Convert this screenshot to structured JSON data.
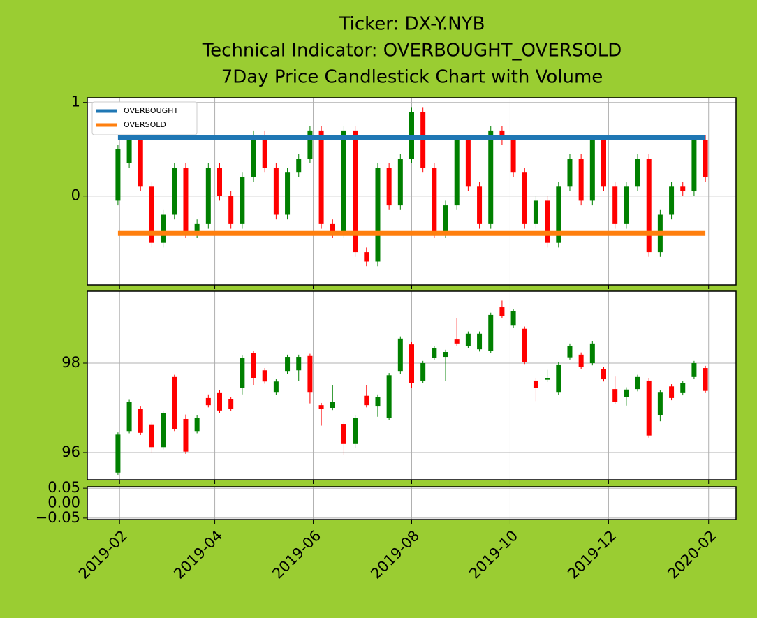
{
  "chart_data": [
    {
      "type": "candlestick",
      "title": [
        "Ticker: DX-Y.NYB",
        "Technical Indicator: OVERBOUGHT_OVERSOLD",
        "7Day Price Candlestick Chart with Volume"
      ],
      "x": [
        "2019-01-31",
        "2019-02-07",
        "2019-02-14",
        "2019-02-21",
        "2019-02-28",
        "2019-03-07",
        "2019-03-14",
        "2019-03-21",
        "2019-03-28",
        "2019-04-04",
        "2019-04-11",
        "2019-04-18",
        "2019-04-25",
        "2019-05-02",
        "2019-05-09",
        "2019-05-16",
        "2019-05-23",
        "2019-05-30",
        "2019-06-06",
        "2019-06-13",
        "2019-06-20",
        "2019-06-27",
        "2019-07-04",
        "2019-07-11",
        "2019-07-18",
        "2019-07-25",
        "2019-08-01",
        "2019-08-08",
        "2019-08-15",
        "2019-08-22",
        "2019-08-29",
        "2019-09-05",
        "2019-09-12",
        "2019-09-19",
        "2019-09-26",
        "2019-10-03",
        "2019-10-10",
        "2019-10-17",
        "2019-10-24",
        "2019-10-31",
        "2019-11-07",
        "2019-11-14",
        "2019-11-21",
        "2019-11-28",
        "2019-12-05",
        "2019-12-12",
        "2019-12-19",
        "2019-12-26",
        "2020-01-02",
        "2020-01-09",
        "2020-01-16",
        "2020-01-23",
        "2020-01-30"
      ],
      "open": [
        -0.05,
        0.35,
        0.6,
        0.1,
        -0.5,
        -0.2,
        0.3,
        -0.4,
        -0.3,
        0.3,
        0.0,
        -0.3,
        0.2,
        0.65,
        0.3,
        -0.2,
        0.25,
        0.4,
        0.7,
        -0.3,
        -0.4,
        0.7,
        -0.6,
        -0.7,
        0.3,
        -0.1,
        0.4,
        0.9,
        0.3,
        -0.4,
        -0.1,
        0.6,
        0.1,
        -0.3,
        0.7,
        0.6,
        0.25,
        -0.3,
        -0.05,
        -0.5,
        0.1,
        0.4,
        -0.05,
        0.6,
        0.1,
        -0.3,
        0.1,
        0.4,
        -0.6,
        -0.2,
        0.1,
        0.05,
        0.6
      ],
      "high": [
        0.55,
        0.65,
        0.65,
        0.15,
        -0.15,
        0.35,
        0.35,
        -0.25,
        0.35,
        0.35,
        0.05,
        0.25,
        0.7,
        0.7,
        0.35,
        0.3,
        0.45,
        0.75,
        0.75,
        -0.25,
        0.75,
        0.75,
        -0.55,
        0.35,
        0.35,
        0.45,
        0.95,
        0.95,
        0.35,
        -0.05,
        0.65,
        0.65,
        0.15,
        0.75,
        0.75,
        0.65,
        0.3,
        0.0,
        0.0,
        0.15,
        0.45,
        0.45,
        0.65,
        0.65,
        0.15,
        0.15,
        0.45,
        0.45,
        -0.15,
        0.15,
        0.15,
        0.65,
        0.65
      ],
      "low": [
        -0.1,
        0.3,
        0.05,
        -0.55,
        -0.55,
        -0.25,
        -0.45,
        -0.45,
        -0.35,
        -0.05,
        -0.35,
        -0.35,
        0.15,
        0.25,
        -0.25,
        -0.25,
        0.2,
        0.35,
        -0.35,
        -0.45,
        -0.45,
        -0.65,
        -0.75,
        -0.75,
        -0.15,
        -0.15,
        0.35,
        0.25,
        -0.45,
        -0.45,
        -0.15,
        0.05,
        -0.35,
        -0.35,
        0.55,
        0.2,
        -0.35,
        -0.35,
        -0.55,
        -0.55,
        0.05,
        -0.1,
        -0.1,
        0.05,
        -0.35,
        -0.35,
        0.05,
        -0.65,
        -0.65,
        -0.25,
        0.0,
        0.0,
        0.15
      ],
      "close": [
        0.5,
        0.6,
        0.1,
        -0.5,
        -0.2,
        0.3,
        -0.4,
        -0.3,
        0.3,
        0.0,
        -0.3,
        0.2,
        0.65,
        0.3,
        -0.2,
        0.25,
        0.4,
        0.7,
        -0.3,
        -0.4,
        0.7,
        -0.6,
        -0.7,
        0.3,
        -0.1,
        0.4,
        0.9,
        0.3,
        -0.4,
        -0.1,
        0.6,
        0.1,
        -0.3,
        0.7,
        0.6,
        0.25,
        -0.3,
        -0.05,
        -0.5,
        0.1,
        0.4,
        -0.05,
        0.6,
        0.1,
        -0.3,
        0.1,
        0.4,
        -0.6,
        -0.2,
        0.1,
        0.05,
        0.6,
        0.2
      ],
      "up_color": "green",
      "down_color": "red",
      "lines": [
        {
          "name": "OVERBOUGHT",
          "color": "#1f77b4",
          "value": 0.627
        },
        {
          "name": "OVERSOLD",
          "color": "#ff7f0e",
          "value": -0.4
        }
      ],
      "legend": "upper left",
      "ylim": [
        -0.95,
        1.05
      ],
      "yticks": [
        0,
        1
      ],
      "grid": true
    },
    {
      "type": "candlestick",
      "x": [
        "2019-01-31",
        "2019-02-07",
        "2019-02-14",
        "2019-02-21",
        "2019-02-28",
        "2019-03-07",
        "2019-03-14",
        "2019-03-21",
        "2019-03-28",
        "2019-04-04",
        "2019-04-11",
        "2019-04-18",
        "2019-04-25",
        "2019-05-02",
        "2019-05-09",
        "2019-05-16",
        "2019-05-23",
        "2019-05-30",
        "2019-06-06",
        "2019-06-13",
        "2019-06-20",
        "2019-06-27",
        "2019-07-04",
        "2019-07-11",
        "2019-07-18",
        "2019-07-25",
        "2019-08-01",
        "2019-08-08",
        "2019-08-15",
        "2019-08-22",
        "2019-08-29",
        "2019-09-05",
        "2019-09-12",
        "2019-09-19",
        "2019-09-26",
        "2019-10-03",
        "2019-10-10",
        "2019-10-17",
        "2019-10-24",
        "2019-10-31",
        "2019-11-07",
        "2019-11-14",
        "2019-11-21",
        "2019-11-28",
        "2019-12-05",
        "2019-12-12",
        "2019-12-19",
        "2019-12-26",
        "2020-01-02",
        "2020-01-09",
        "2020-01-16",
        "2020-01-23",
        "2020-01-30"
      ],
      "open": [
        95.55,
        96.48,
        96.98,
        96.63,
        96.12,
        97.69,
        96.75,
        96.48,
        97.22,
        97.33,
        97.19,
        97.45,
        98.22,
        97.84,
        97.34,
        97.81,
        97.84,
        98.16,
        97.06,
        97.0,
        96.64,
        96.19,
        97.27,
        97.03,
        96.77,
        97.81,
        98.42,
        97.61,
        98.12,
        98.14,
        98.53,
        98.39,
        98.31,
        98.27,
        99.25,
        98.84,
        98.77,
        97.61,
        97.63,
        97.34,
        98.13,
        98.19,
        98.0,
        97.86,
        97.42,
        97.25,
        97.42,
        97.61,
        96.83,
        97.48,
        97.33,
        97.69,
        97.89
      ],
      "high": [
        96.45,
        97.18,
        97.03,
        96.68,
        96.93,
        97.74,
        96.85,
        96.83,
        97.3,
        97.4,
        97.24,
        98.17,
        98.27,
        97.89,
        97.64,
        98.19,
        98.19,
        98.21,
        97.11,
        97.5,
        96.69,
        96.83,
        97.5,
        97.3,
        97.78,
        98.6,
        98.47,
        98.05,
        98.39,
        98.3,
        99.0,
        98.71,
        98.71,
        99.13,
        99.4,
        99.21,
        98.82,
        97.66,
        97.85,
        98.02,
        98.44,
        98.24,
        98.49,
        97.91,
        97.7,
        97.46,
        97.74,
        97.66,
        97.39,
        97.53,
        97.6,
        98.05,
        97.94
      ],
      "low": [
        95.5,
        96.43,
        96.39,
        96.0,
        96.07,
        96.48,
        95.97,
        96.43,
        97.01,
        96.89,
        96.93,
        97.3,
        97.5,
        97.54,
        97.29,
        97.76,
        97.6,
        97.1,
        96.6,
        96.95,
        95.95,
        96.1,
        97.01,
        96.8,
        96.72,
        97.76,
        97.45,
        97.56,
        98.07,
        97.6,
        98.39,
        98.34,
        98.26,
        98.22,
        99.0,
        98.79,
        97.98,
        97.15,
        97.58,
        97.29,
        98.08,
        97.87,
        97.95,
        97.59,
        97.09,
        97.05,
        97.37,
        96.33,
        96.7,
        97.17,
        97.28,
        97.64,
        97.33
      ],
      "close": [
        96.4,
        97.13,
        96.44,
        96.12,
        96.88,
        96.53,
        96.02,
        96.78,
        97.06,
        96.94,
        96.98,
        98.12,
        97.66,
        97.59,
        97.59,
        98.14,
        98.14,
        97.34,
        96.98,
        97.14,
        96.19,
        96.78,
        97.06,
        97.25,
        97.73,
        98.55,
        97.56,
        98.0,
        98.34,
        98.25,
        98.44,
        98.66,
        98.66,
        99.08,
        99.05,
        99.16,
        98.03,
        97.44,
        97.67,
        97.97,
        98.39,
        97.92,
        98.44,
        97.64,
        97.14,
        97.41,
        97.69,
        96.38,
        97.34,
        97.22,
        97.55,
        98.0,
        97.38
      ],
      "up_color": "green",
      "down_color": "red",
      "ylim": [
        95.39,
        99.61
      ],
      "yticks": [
        96,
        98
      ],
      "grid": true
    },
    {
      "type": "volume",
      "ylim": [
        -0.055,
        0.055
      ],
      "yticks": [
        0.05,
        {
          "value": 0,
          "label": "0.00"
        },
        {
          "value": -0.05,
          "label": "−0.05"
        }
      ],
      "xlim": [
        "2019-01-12",
        "2020-02-18"
      ],
      "xticks": [
        {
          "value": "2019-02-01",
          "label": "2019-02"
        },
        {
          "value": "2019-04-01",
          "label": "2019-04"
        },
        {
          "value": "2019-06-01",
          "label": "2019-06"
        },
        {
          "value": "2019-08-01",
          "label": "2019-08"
        },
        {
          "value": "2019-10-01",
          "label": "2019-10"
        },
        {
          "value": "2019-12-01",
          "label": "2019-12"
        },
        {
          "value": "2020-02-01",
          "label": "2020-02"
        }
      ],
      "grid": true
    }
  ]
}
